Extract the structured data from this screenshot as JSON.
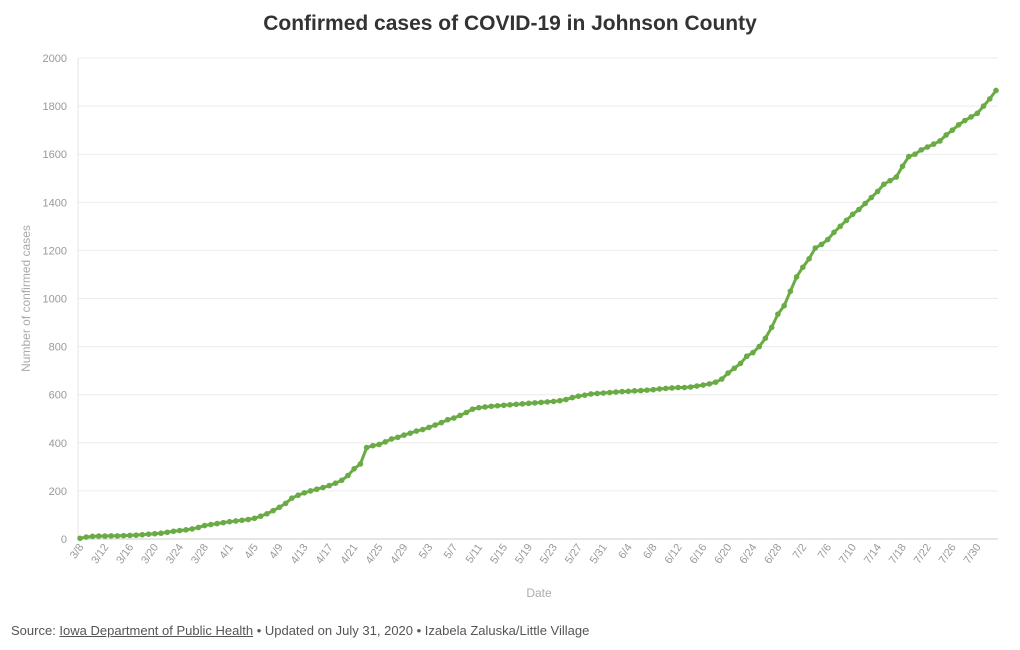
{
  "chart_data": {
    "type": "line",
    "title": "Confirmed cases of COVID-19 in Johnson County",
    "xlabel": "Date",
    "ylabel": "Number of confirmed cases",
    "ylim": [
      0,
      2000
    ],
    "yticks": [
      0,
      200,
      400,
      600,
      800,
      1000,
      1200,
      1400,
      1600,
      1800,
      2000
    ],
    "grid": true,
    "legend": "none",
    "line_color": "#6aab46",
    "x_tick_labels": [
      "3/8",
      "3/12",
      "3/16",
      "3/20",
      "3/24",
      "3/28",
      "4/1",
      "4/5",
      "4/9",
      "4/13",
      "4/17",
      "4/21",
      "4/25",
      "4/29",
      "5/3",
      "5/7",
      "5/11",
      "5/15",
      "5/19",
      "5/23",
      "5/27",
      "5/31",
      "6/4",
      "6/8",
      "6/12",
      "6/16",
      "6/20",
      "6/24",
      "6/28",
      "7/2",
      "7/6",
      "7/10",
      "7/14",
      "7/18",
      "7/22",
      "7/26",
      "7/30"
    ],
    "x_start": "3/8",
    "x_end": "7/31",
    "series": [
      {
        "values": [
          3,
          8,
          11,
          12,
          12,
          13,
          13,
          14,
          15,
          16,
          18,
          20,
          22,
          24,
          28,
          32,
          35,
          38,
          42,
          48,
          56,
          60,
          64,
          68,
          72,
          75,
          78,
          81,
          86,
          95,
          105,
          118,
          132,
          148,
          170,
          182,
          192,
          200,
          207,
          214,
          222,
          232,
          244,
          264,
          292,
          312,
          380,
          388,
          393,
          404,
          416,
          423,
          432,
          440,
          449,
          455,
          464,
          474,
          484,
          496,
          503,
          514,
          526,
          540,
          546,
          549,
          552,
          554,
          556,
          558,
          560,
          562,
          564,
          566,
          568,
          570,
          572,
          575,
          580,
          588,
          594,
          598,
          603,
          605,
          607,
          609,
          611,
          613,
          614,
          616,
          617,
          619,
          621,
          624,
          626,
          628,
          630,
          630,
          632,
          636,
          640,
          645,
          652,
          665,
          690,
          710,
          730,
          760,
          775,
          800,
          835,
          880,
          935,
          970,
          1030,
          1090,
          1130,
          1165,
          1210,
          1225,
          1245,
          1275,
          1300,
          1325,
          1350,
          1370,
          1395,
          1420,
          1445,
          1475,
          1490,
          1505,
          1550,
          1590,
          1600,
          1618,
          1630,
          1642,
          1655,
          1680,
          1700,
          1722,
          1740,
          1755,
          1770,
          1800,
          1830,
          1865
        ]
      }
    ]
  },
  "footer": {
    "source_label": "Source: ",
    "source_link": "Iowa Department of Public Health",
    "credit": " • Updated on July 31, 2020 • Izabela Zaluska/Little Village"
  }
}
